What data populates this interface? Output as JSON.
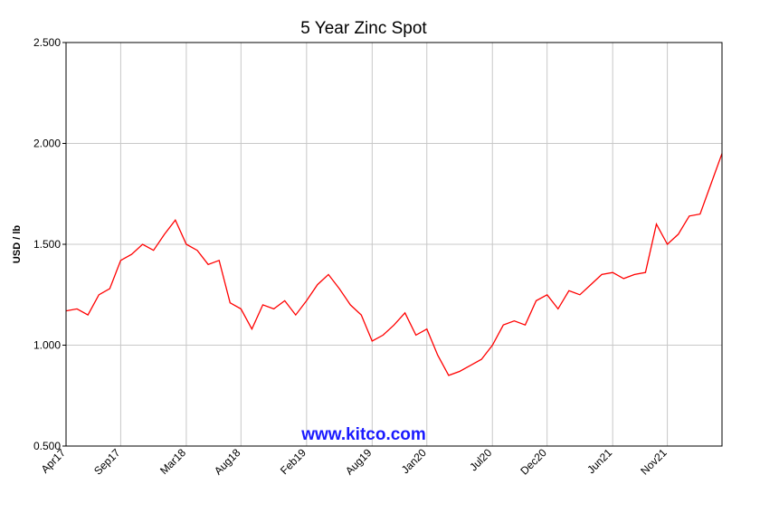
{
  "chart_data": {
    "type": "line",
    "title": "5 Year Zinc Spot",
    "y_label": "USD / lb",
    "watermark": "www.kitco.com",
    "categories": [
      "Apr17",
      null,
      null,
      null,
      null,
      "Sep17",
      null,
      null,
      null,
      null,
      null,
      "Mar18",
      null,
      null,
      null,
      null,
      "Aug18",
      null,
      null,
      null,
      null,
      null,
      "Feb19",
      null,
      null,
      null,
      null,
      null,
      "Aug19",
      null,
      null,
      null,
      null,
      "Jan20",
      null,
      null,
      null,
      null,
      null,
      "Jul20",
      null,
      null,
      null,
      null,
      "Dec20",
      null,
      null,
      null,
      null,
      null,
      "Jun21",
      null,
      null,
      null,
      null,
      "Nov21",
      null,
      null,
      null,
      null,
      null
    ],
    "series": [
      {
        "name": "Zinc",
        "color": "#ff0000",
        "values": [
          1.17,
          1.18,
          1.15,
          1.25,
          1.28,
          1.42,
          1.45,
          1.5,
          1.47,
          1.55,
          1.62,
          1.5,
          1.47,
          1.4,
          1.42,
          1.21,
          1.18,
          1.08,
          1.2,
          1.18,
          1.22,
          1.15,
          1.22,
          1.3,
          1.35,
          1.28,
          1.2,
          1.15,
          1.02,
          1.05,
          1.1,
          1.16,
          1.05,
          1.08,
          0.95,
          0.85,
          0.87,
          0.9,
          0.93,
          1.0,
          1.1,
          1.12,
          1.1,
          1.22,
          1.25,
          1.18,
          1.27,
          1.25,
          1.3,
          1.35,
          1.36,
          1.33,
          1.35,
          1.36,
          1.6,
          1.5,
          1.55,
          1.64,
          1.65,
          1.8,
          1.95
        ]
      }
    ],
    "ylim": [
      0.5,
      2.5
    ],
    "yticks": [
      {
        "value": 0.5,
        "label": "0.500"
      },
      {
        "value": 1.0,
        "label": "1.000"
      },
      {
        "value": 1.5,
        "label": "1.500"
      },
      {
        "value": 2.0,
        "label": "2.000"
      },
      {
        "value": 2.5,
        "label": "2.500"
      }
    ],
    "grid": true
  }
}
